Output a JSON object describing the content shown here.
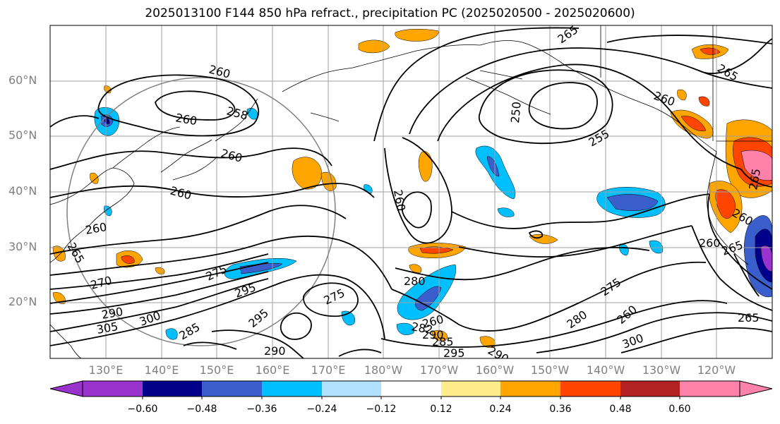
{
  "title": "2025013100 F144 850 hPa refract., precipitation PC (2025020500 - 2025020600)",
  "lat_labels": [
    "60°N",
    "50°N",
    "40°N",
    "30°N",
    "20°N"
  ],
  "lon_labels": [
    "130°E",
    "140°E",
    "150°E",
    "160°E",
    "170°E",
    "180°W",
    "170°W",
    "160°W",
    "150°W",
    "140°W",
    "130°W",
    "120°W"
  ],
  "colorbar": {
    "ticks": [
      "−0.60",
      "−0.48",
      "−0.36",
      "−0.24",
      "−0.12",
      "0.12",
      "0.24",
      "0.36",
      "0.48",
      "0.60"
    ],
    "colors": [
      "#9a32cd",
      "#00008b",
      "#3a5fcd",
      "#00bfff",
      "#b0e2ff",
      "#ffffff",
      "#ffec8b",
      "#ffa500",
      "#ff4500",
      "#b22222",
      "#ff82ab"
    ]
  },
  "contour_labels": [
    "265",
    "258",
    "260",
    "260",
    "260",
    "260",
    "250",
    "255",
    "260",
    "260",
    "265",
    "260",
    "265",
    "270",
    "275",
    "290",
    "295",
    "300",
    "305",
    "285",
    "295",
    "290",
    "260",
    "280",
    "275",
    "282",
    "290",
    "285",
    "295",
    "290",
    "275",
    "280",
    "260",
    "300",
    "260",
    "265",
    "265",
    "265",
    "260"
  ]
}
